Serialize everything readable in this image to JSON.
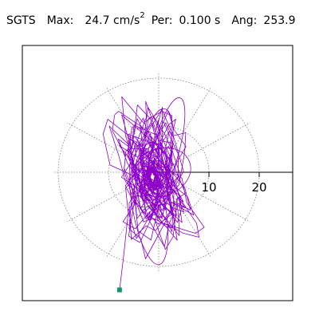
{
  "header": {
    "station": "SGTS",
    "max_label": "Max:",
    "max_value": "24.7",
    "max_unit": "cm/s",
    "max_unit_power": "2",
    "per_label": "Per:",
    "per_value": "0.100 s",
    "ang_label": "Ang:",
    "ang_value": "253.9"
  },
  "chart_data": {
    "type": "polar-particle-motion",
    "radial_ticks": [
      10,
      20
    ],
    "tick_labels": [
      "10",
      "20"
    ],
    "rmax": 24.7,
    "grid_rings": [
      10,
      20
    ],
    "spoke_angles_deg": [
      0,
      30,
      60,
      90,
      120,
      150,
      180,
      210,
      240,
      270,
      300,
      330
    ],
    "trace_color": "#8c00c8",
    "marker_color": "#13946a",
    "grid_color": "#808080",
    "peak_angle_deg": 253.9,
    "peak_value": 24.7
  }
}
